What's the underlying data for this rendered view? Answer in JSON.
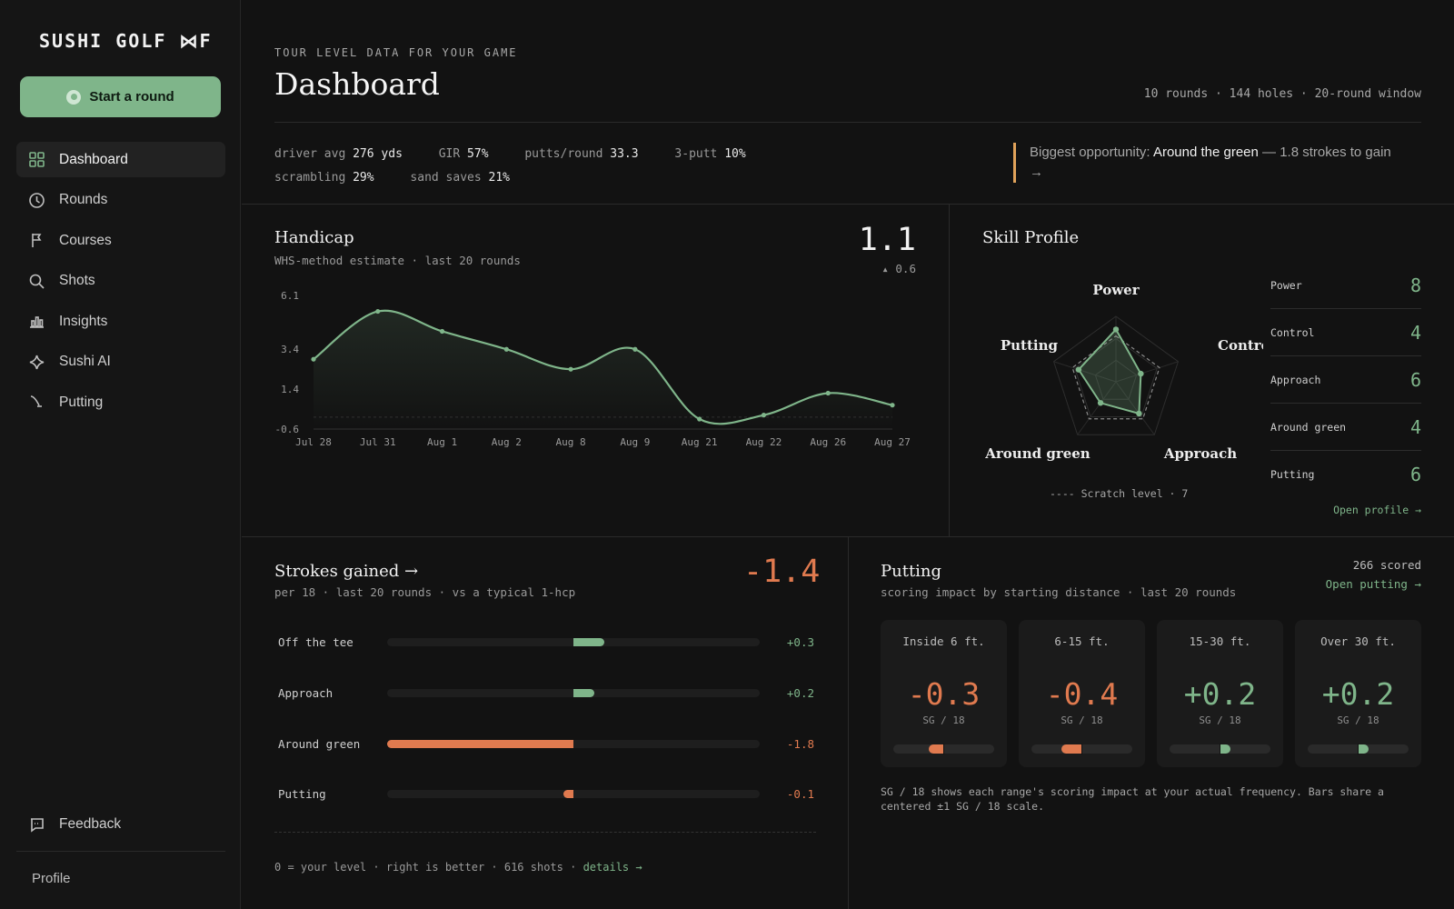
{
  "app": {
    "logo": "SUSHI GOLF ⋈F"
  },
  "sidebar": {
    "start_label": "Start a round",
    "items": [
      {
        "label": "Dashboard",
        "icon": "grid-icon"
      },
      {
        "label": "Rounds",
        "icon": "clock-icon"
      },
      {
        "label": "Courses",
        "icon": "flag-icon"
      },
      {
        "label": "Shots",
        "icon": "search-icon"
      },
      {
        "label": "Insights",
        "icon": "bar-chart-icon"
      },
      {
        "label": "Sushi AI",
        "icon": "sparkle-icon"
      },
      {
        "label": "Putting",
        "icon": "putter-icon"
      }
    ],
    "feedback_label": "Feedback",
    "profile_label": "Profile"
  },
  "header": {
    "eyebrow": "TOUR LEVEL DATA FOR YOUR GAME",
    "title": "Dashboard",
    "meta": "10 rounds · 144 holes · 20-round window"
  },
  "stats": [
    {
      "label": "driver avg",
      "value": "276 yds"
    },
    {
      "label": "GIR",
      "value": "57%"
    },
    {
      "label": "putts/round",
      "value": "33.3"
    },
    {
      "label": "3-putt",
      "value": "10%"
    },
    {
      "label": "scrambling",
      "value": "29%"
    },
    {
      "label": "sand saves",
      "value": "21%"
    }
  ],
  "opportunity": {
    "prefix": "Biggest opportunity:",
    "area": "Around the green",
    "suffix": "— 1.8 strokes to gain →"
  },
  "handicap": {
    "title": "Handicap",
    "subtitle": "WHS-method estimate · last 20 rounds",
    "value": "1.1",
    "delta": "▴ 0.6",
    "chart_data": {
      "type": "line",
      "x": [
        "Jul 28",
        "Jul 31",
        "Aug 1",
        "Aug 2",
        "Aug 8",
        "Aug 9",
        "Aug 21",
        "Aug 22",
        "Aug 26",
        "Aug 27"
      ],
      "y": [
        2.9,
        5.3,
        4.3,
        3.4,
        2.4,
        3.4,
        -0.1,
        0.1,
        1.2,
        0.6
      ],
      "y_ticks": [
        "6.1",
        "3.4",
        "1.4",
        "-0.6"
      ],
      "ylim": [
        -0.6,
        6.1
      ],
      "color": "#7fb58a"
    }
  },
  "skill": {
    "title": "Skill Profile",
    "scratch_label": "---- Scratch level · 7",
    "open_label": "Open profile →",
    "chart_data": {
      "type": "radar",
      "axes": [
        "Power",
        "Control",
        "Approach",
        "Around green",
        "Putting"
      ],
      "values": [
        8,
        4,
        6,
        4,
        6
      ],
      "reference": 7,
      "max": 10,
      "color": "#7fb58a"
    },
    "items": [
      {
        "name": "Power",
        "score": "8"
      },
      {
        "name": "Control",
        "score": "4"
      },
      {
        "name": "Approach",
        "score": "6"
      },
      {
        "name": "Around green",
        "score": "4"
      },
      {
        "name": "Putting",
        "score": "6"
      }
    ]
  },
  "strokes_gained": {
    "title": "Strokes gained →",
    "subtitle": "per 18 · last 20 rounds · vs a typical 1-hcp",
    "total": "-1.4",
    "footer_text": "0 = your level · right is better · 616 shots ·",
    "details_label": "details →",
    "chart_data": {
      "type": "bar",
      "categories": [
        "Off the tee",
        "Approach",
        "Around green",
        "Putting"
      ],
      "values": [
        0.3,
        0.2,
        -1.8,
        -0.1
      ],
      "labels": [
        "+0.3",
        "+0.2",
        "-1.8",
        "-0.1"
      ],
      "xlim": [
        -1.8,
        1.8
      ],
      "positive_color": "#7fb58a",
      "negative_color": "#e07a4f"
    }
  },
  "putting": {
    "title": "Putting",
    "subtitle": "scoring impact by starting distance · last 20 rounds",
    "scored": "266 scored",
    "open_label": "Open putting →",
    "unit": "SG / 18",
    "note": "SG / 18 shows each range's scoring impact at your actual frequency. Bars share a centered ±1 SG / 18 scale.",
    "ranges": [
      {
        "label": "Inside 6 ft.",
        "value": "-0.3",
        "sg": -0.3
      },
      {
        "label": "6-15 ft.",
        "value": "-0.4",
        "sg": -0.4
      },
      {
        "label": "15-30 ft.",
        "value": "+0.2",
        "sg": 0.2
      },
      {
        "label": "Over 30 ft.",
        "value": "+0.2",
        "sg": 0.2
      }
    ]
  }
}
